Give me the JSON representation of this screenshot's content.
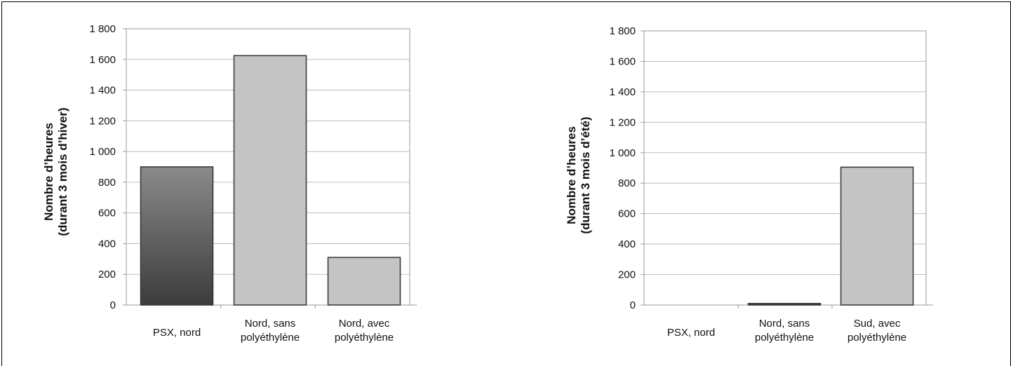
{
  "chart_data": [
    {
      "type": "bar",
      "categories": [
        [
          "PSX, nord"
        ],
        [
          "Nord, sans",
          "polyéthylène"
        ],
        [
          "Nord, avec",
          "polyéthylène"
        ]
      ],
      "values": [
        900,
        1625,
        310
      ],
      "ylabel_lines": [
        "Nombre d’heures",
        "(durant 3 mois d’hiver)"
      ],
      "ylim": [
        0,
        1800
      ],
      "yticks": [
        0,
        200,
        400,
        600,
        800,
        1000,
        1200,
        1400,
        1600,
        1800
      ],
      "ytick_labels": [
        "0",
        "200",
        "400",
        "600",
        "800",
        "1 000",
        "1 200",
        "1 400",
        "1 600",
        "1 800"
      ],
      "grid": true,
      "bar_styles": [
        "dark-gradient",
        "light",
        "light"
      ]
    },
    {
      "type": "bar",
      "categories": [
        [
          "PSX, nord"
        ],
        [
          "Nord, sans",
          "polyéthylène"
        ],
        [
          "Sud, avec",
          "polyéthylène"
        ]
      ],
      "values": [
        0,
        10,
        905
      ],
      "ylabel_lines": [
        "Nombre d’heures",
        "(durant 3 mois d’été)"
      ],
      "ylim": [
        0,
        1800
      ],
      "yticks": [
        0,
        200,
        400,
        600,
        800,
        1000,
        1200,
        1400,
        1600,
        1800
      ],
      "ytick_labels": [
        "0",
        "200",
        "400",
        "600",
        "800",
        "1 000",
        "1 200",
        "1 400",
        "1 600",
        "1 800"
      ],
      "grid": true,
      "bar_styles": [
        "dark",
        "dark",
        "light"
      ]
    }
  ],
  "colors": {
    "bar_light": "#c4c4c4",
    "bar_dark_top": "#8a8a8a",
    "bar_dark_bottom": "#3c3c3c",
    "bar_stroke": "#333333",
    "grid": "#bdbdbd",
    "axis": "#9a9a9a"
  }
}
